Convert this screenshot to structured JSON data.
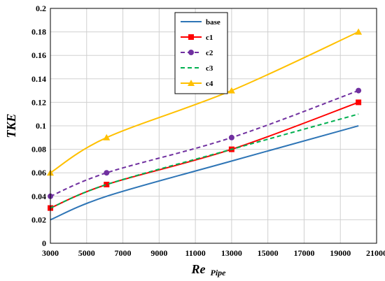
{
  "chart_data": {
    "type": "line",
    "xlabel": "Re",
    "xlabel_sub": "Pipe",
    "ylabel": "TKE",
    "xlim": [
      3000,
      21000
    ],
    "ylim": [
      0,
      0.2
    ],
    "xticks": [
      "3000",
      "5000",
      "7000",
      "9000",
      "11000",
      "13000",
      "15000",
      "17000",
      "19000",
      "21000"
    ],
    "yticks": [
      "0",
      "0.02",
      "0.04",
      "0.06",
      "0.08",
      "0.1",
      "0.12",
      "0.14",
      "0.16",
      "0.18",
      "0.2"
    ],
    "grid": true,
    "legend_position": "top-center",
    "series": [
      {
        "name": "base",
        "color": "#2e75b6",
        "dash": "none",
        "marker": "none",
        "x": [
          3000,
          6100,
          13000,
          20000
        ],
        "y": [
          0.02,
          0.04,
          0.07,
          0.1
        ]
      },
      {
        "name": "c1",
        "color": "#ff0000",
        "dash": "none",
        "marker": "square",
        "x": [
          3000,
          6100,
          13000,
          20000
        ],
        "y": [
          0.03,
          0.05,
          0.08,
          0.12
        ]
      },
      {
        "name": "c2",
        "color": "#7030a0",
        "dash": "dash",
        "marker": "circle",
        "x": [
          3000,
          6100,
          13000,
          20000
        ],
        "y": [
          0.04,
          0.06,
          0.09,
          0.13
        ]
      },
      {
        "name": "c3",
        "color": "#00b050",
        "dash": "dash",
        "marker": "none",
        "x": [
          3000,
          6100,
          13000,
          20000
        ],
        "y": [
          0.03,
          0.05,
          0.08,
          0.11
        ]
      },
      {
        "name": "c4",
        "color": "#ffc000",
        "dash": "none",
        "marker": "triangle",
        "x": [
          3000,
          6100,
          13000,
          20000
        ],
        "y": [
          0.06,
          0.09,
          0.13,
          0.18
        ]
      }
    ]
  }
}
